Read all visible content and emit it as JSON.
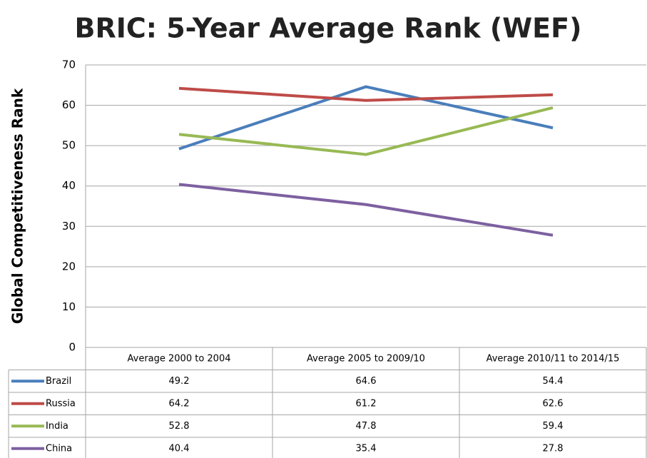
{
  "chart_data": {
    "type": "line",
    "title": "BRIC: 5-Year Average Rank (WEF)",
    "y_label": "Global Competitiveness Rank",
    "categories": [
      "Average 2000 to 2004",
      "Average 2005 to 2009/10",
      "Average 2010/11 to 2014/15"
    ],
    "series": [
      {
        "name": "Brazil",
        "color": "#4a7ebb",
        "values": [
          49.2,
          64.6,
          54.4
        ]
      },
      {
        "name": "Russia",
        "color": "#be4b48",
        "values": [
          64.2,
          61.2,
          62.6
        ]
      },
      {
        "name": "India",
        "color": "#98b954",
        "values": [
          52.8,
          47.8,
          59.4
        ]
      },
      {
        "name": "China",
        "color": "#7d60a0",
        "values": [
          40.4,
          35.4,
          27.8
        ]
      }
    ],
    "ylim": [
      0,
      70
    ],
    "yticks": [
      0,
      10,
      20,
      30,
      40,
      50,
      60,
      70
    ],
    "grid": true,
    "data_table": true
  }
}
